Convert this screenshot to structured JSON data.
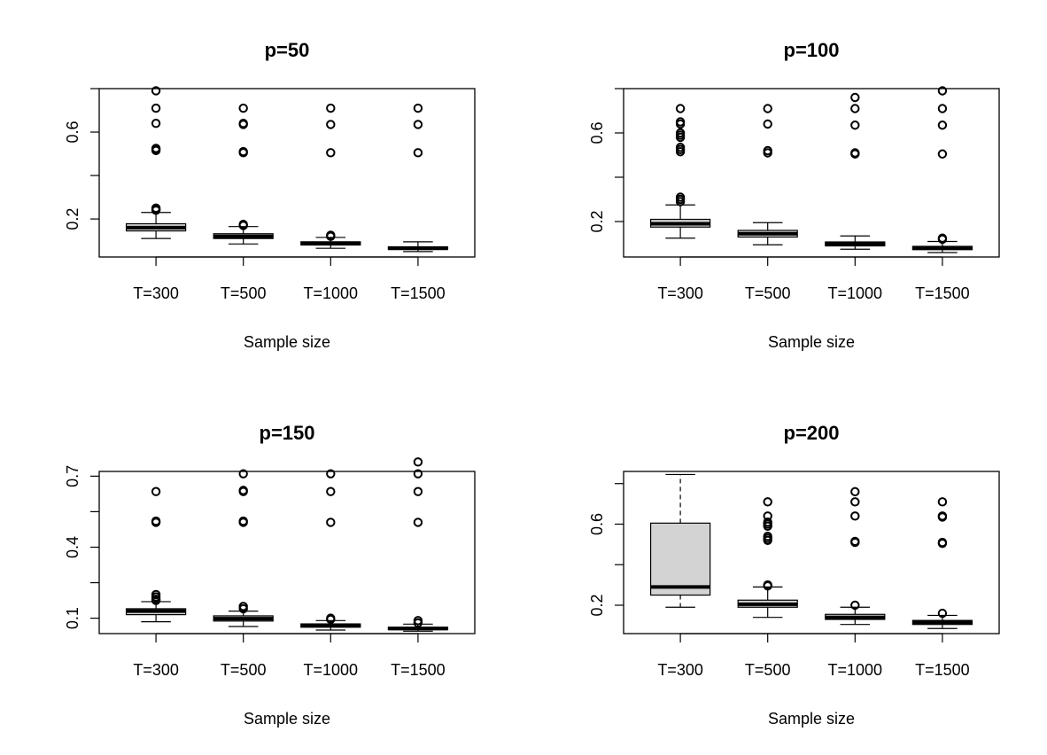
{
  "chart_data": [
    {
      "type": "boxplot",
      "title": "p=50",
      "xlabel": "Sample size",
      "ylabel": "",
      "categories": [
        "T=300",
        "T=500",
        "T=1000",
        "T=1500"
      ],
      "yticks": [
        "0.2",
        "0.6"
      ],
      "ytick_values": [
        0.2,
        0.6
      ],
      "ytick_minor": [
        0.4,
        0.8
      ],
      "ylim": [
        0.025,
        0.8
      ],
      "boxes": [
        {
          "whisker_low": 0.11,
          "q1": 0.145,
          "median": 0.16,
          "q3": 0.178,
          "whisker_high": 0.23,
          "outliers": [
            0.24,
            0.245,
            0.25,
            0.515,
            0.52,
            0.525,
            0.64,
            0.71,
            0.79
          ]
        },
        {
          "whisker_low": 0.085,
          "q1": 0.11,
          "median": 0.12,
          "q3": 0.132,
          "whisker_high": 0.165,
          "outliers": [
            0.17,
            0.175,
            0.505,
            0.51,
            0.635,
            0.64,
            0.71
          ]
        },
        {
          "whisker_low": 0.065,
          "q1": 0.08,
          "median": 0.087,
          "q3": 0.095,
          "whisker_high": 0.115,
          "outliers": [
            0.12,
            0.125,
            0.505,
            0.635,
            0.71
          ]
        },
        {
          "whisker_low": 0.05,
          "q1": 0.06,
          "median": 0.065,
          "q3": 0.072,
          "whisker_high": 0.095,
          "outliers": [
            0.505,
            0.635,
            0.71
          ]
        }
      ]
    },
    {
      "type": "boxplot",
      "title": "p=100",
      "xlabel": "Sample size",
      "ylabel": "",
      "categories": [
        "T=300",
        "T=500",
        "T=1000",
        "T=1500"
      ],
      "yticks": [
        "0.2",
        "0.6"
      ],
      "ytick_values": [
        0.2,
        0.6
      ],
      "ytick_minor": [
        0.4,
        0.8
      ],
      "ylim": [
        0.04,
        0.8
      ],
      "boxes": [
        {
          "whisker_low": 0.125,
          "q1": 0.175,
          "median": 0.19,
          "q3": 0.21,
          "whisker_high": 0.275,
          "outliers": [
            0.29,
            0.3,
            0.31,
            0.515,
            0.525,
            0.535,
            0.58,
            0.59,
            0.6,
            0.64,
            0.65,
            0.71
          ]
        },
        {
          "whisker_low": 0.095,
          "q1": 0.13,
          "median": 0.145,
          "q3": 0.16,
          "whisker_high": 0.195,
          "outliers": [
            0.51,
            0.52,
            0.64,
            0.71
          ]
        },
        {
          "whisker_low": 0.075,
          "q1": 0.09,
          "median": 0.1,
          "q3": 0.108,
          "whisker_high": 0.135,
          "outliers": [
            0.505,
            0.51,
            0.635,
            0.71,
            0.76
          ]
        },
        {
          "whisker_low": 0.06,
          "q1": 0.073,
          "median": 0.08,
          "q3": 0.088,
          "whisker_high": 0.11,
          "outliers": [
            0.12,
            0.125,
            0.505,
            0.635,
            0.71,
            0.79
          ]
        }
      ]
    },
    {
      "type": "boxplot",
      "title": "p=150",
      "xlabel": "Sample size",
      "ylabel": "",
      "categories": [
        "T=300",
        "T=500",
        "T=1000",
        "T=1500"
      ],
      "yticks": [
        "0.1",
        "0.4",
        "0.7"
      ],
      "ytick_values": [
        0.1,
        0.4,
        0.7
      ],
      "ytick_minor": [
        0.25,
        0.55
      ],
      "ylim": [
        0.035,
        0.72
      ],
      "boxes": [
        {
          "whisker_low": 0.085,
          "q1": 0.115,
          "median": 0.13,
          "q3": 0.14,
          "whisker_high": 0.17,
          "outliers": [
            0.175,
            0.18,
            0.19,
            0.2,
            0.505,
            0.51,
            0.635
          ]
        },
        {
          "whisker_low": 0.065,
          "q1": 0.088,
          "median": 0.098,
          "q3": 0.11,
          "whisker_high": 0.13,
          "outliers": [
            0.14,
            0.15,
            0.505,
            0.51,
            0.635,
            0.64,
            0.71
          ]
        },
        {
          "whisker_low": 0.05,
          "q1": 0.062,
          "median": 0.068,
          "q3": 0.076,
          "whisker_high": 0.09,
          "outliers": [
            0.095,
            0.1,
            0.505,
            0.635,
            0.71
          ]
        },
        {
          "whisker_low": 0.045,
          "q1": 0.052,
          "median": 0.056,
          "q3": 0.062,
          "whisker_high": 0.075,
          "outliers": [
            0.08,
            0.09,
            0.505,
            0.635,
            0.71,
            0.76
          ]
        }
      ]
    },
    {
      "type": "boxplot",
      "title": "p=200",
      "xlabel": "Sample size",
      "ylabel": "",
      "categories": [
        "T=300",
        "T=500",
        "T=1000",
        "T=1500"
      ],
      "yticks": [
        "0.2",
        "0.6"
      ],
      "ytick_values": [
        0.2,
        0.6
      ],
      "ytick_minor": [
        0.4,
        0.8
      ],
      "ylim": [
        0.06,
        0.86
      ],
      "boxes": [
        {
          "whisker_low": 0.19,
          "q1": 0.25,
          "median": 0.29,
          "q3": 0.605,
          "whisker_high": 0.845,
          "whisker_high_dashed": true,
          "outliers": []
        },
        {
          "whisker_low": 0.14,
          "q1": 0.19,
          "median": 0.205,
          "q3": 0.225,
          "whisker_high": 0.29,
          "outliers": [
            0.295,
            0.3,
            0.52,
            0.53,
            0.54,
            0.59,
            0.6,
            0.61,
            0.64,
            0.71
          ]
        },
        {
          "whisker_low": 0.105,
          "q1": 0.13,
          "median": 0.14,
          "q3": 0.155,
          "whisker_high": 0.19,
          "outliers": [
            0.2,
            0.51,
            0.515,
            0.64,
            0.71,
            0.76
          ]
        },
        {
          "whisker_low": 0.085,
          "q1": 0.105,
          "median": 0.115,
          "q3": 0.125,
          "whisker_high": 0.15,
          "outliers": [
            0.16,
            0.505,
            0.51,
            0.635,
            0.64,
            0.71
          ]
        }
      ]
    }
  ]
}
